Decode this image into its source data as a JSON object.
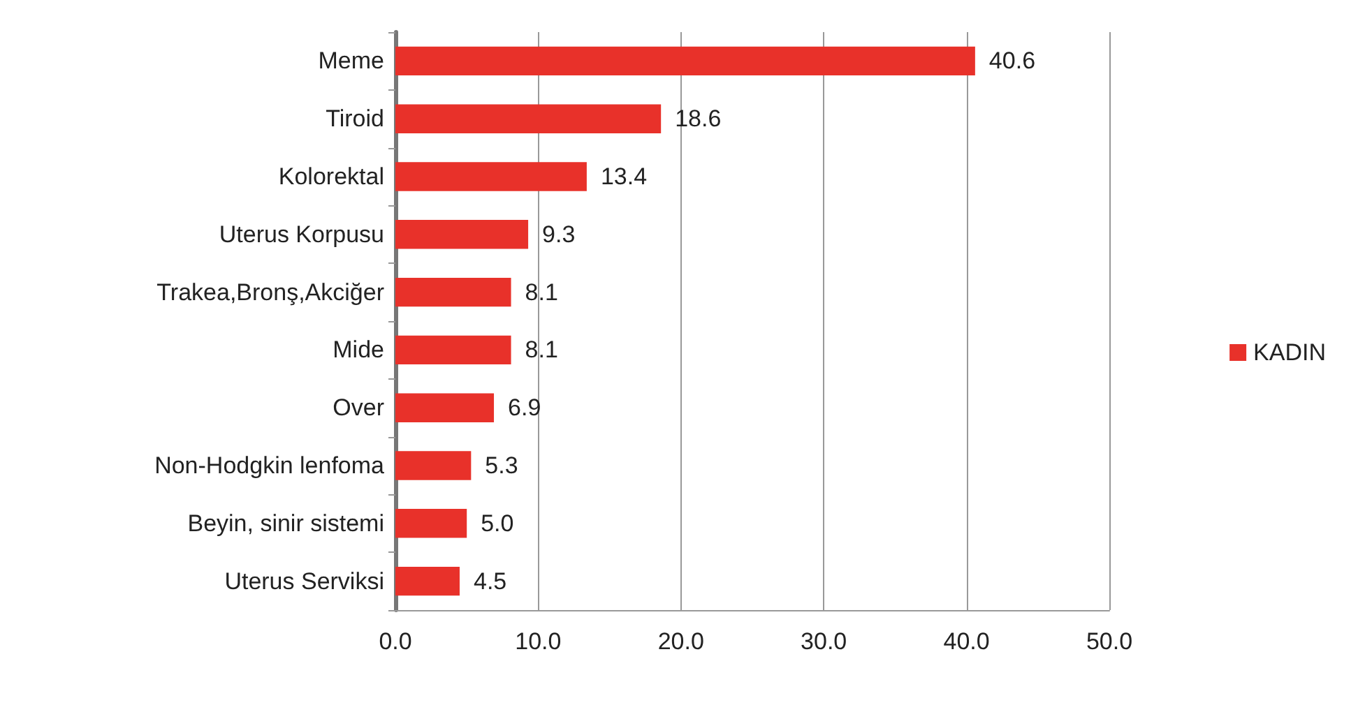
{
  "chart_data": {
    "type": "bar",
    "orientation": "horizontal",
    "categories": [
      "Meme",
      "Tiroid",
      "Kolorektal",
      "Uterus Korpusu",
      "Trakea,Bronş,Akciğer",
      "Mide",
      "Over",
      "Non-Hodgkin lenfoma",
      "Beyin, sinir sistemi",
      "Uterus Serviksi"
    ],
    "series": [
      {
        "name": "KADIN",
        "color": "#e8312a",
        "values": [
          40.6,
          18.6,
          13.4,
          9.3,
          8.1,
          8.1,
          6.9,
          5.3,
          5.0,
          4.5
        ],
        "value_labels": [
          "40.6",
          "18.6",
          "13.4",
          "9.3",
          "8.1",
          "8.1",
          "6.9",
          "5.3",
          "5.0",
          "4.5"
        ]
      }
    ],
    "xlim": [
      0,
      50
    ],
    "xticks": [
      {
        "value": 0,
        "label": "0.0"
      },
      {
        "value": 10,
        "label": "10.0"
      },
      {
        "value": 20,
        "label": "20.0"
      },
      {
        "value": 30,
        "label": "30.0"
      },
      {
        "value": 40,
        "label": "40.0"
      },
      {
        "value": 50,
        "label": "50.0"
      }
    ],
    "grid": "x",
    "legend": "right"
  }
}
